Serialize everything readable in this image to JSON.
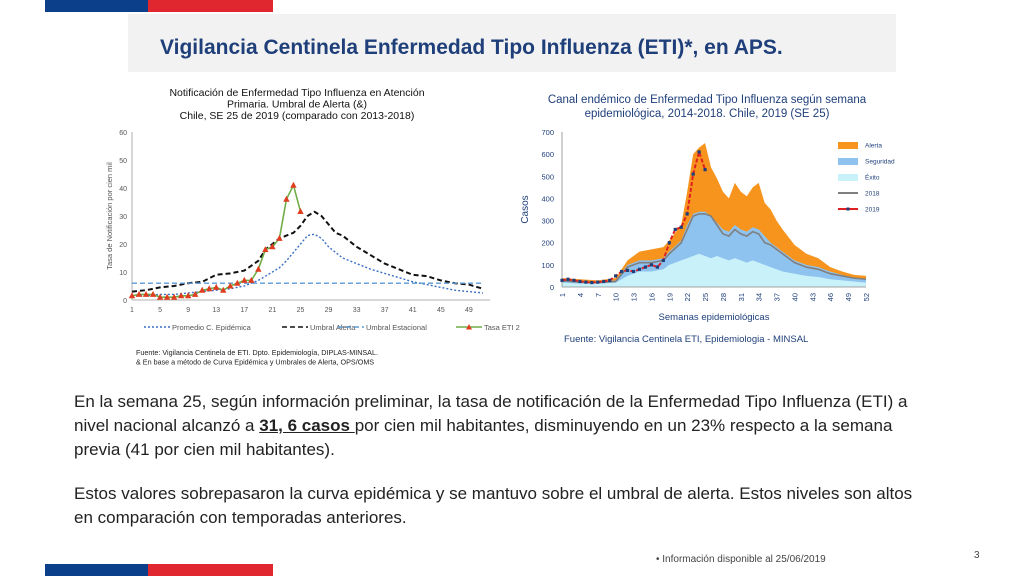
{
  "colors": {
    "flag_blue": "#0b3f8a",
    "flag_red": "#e0262f",
    "title_text": "#1f3f7a",
    "title_bg": "#f2f2f2"
  },
  "slide": {
    "title": "Vigilancia Centinela Enfermedad Tipo Influenza (ETI)*, en APS.",
    "paragraph1_a": "En la semana 25, según información preliminar,  la tasa de notificación de la Enfermedad Tipo Influenza (ETI) a nivel nacional alcanzó a ",
    "paragraph1_highlight": "31, 6 casos ",
    "paragraph1_b": "por cien mil habitantes, disminuyendo en un 23% respecto a la semana previa (41 por cien mil habitantes).",
    "paragraph2": "Estos valores sobrepasaron la curva epidémica y se mantuvo sobre el umbral de alerta. Estos niveles son altos en comparación con temporadas anteriores.",
    "footnote": "•   Información disponible al 25/06/2019",
    "page_number": "3"
  },
  "chart_data": [
    {
      "type": "line",
      "title_lines": [
        "Notificación de Enfermedad Tipo Influenza en Atención",
        "Primaria.  Umbral de Alerta (&)",
        "Chile, SE 25 de 2019 (comparado con 2013-2018)"
      ],
      "ylabel": "Tasa de Notificación por cien mil",
      "xlabel": "",
      "ylim": [
        0,
        60
      ],
      "yticks": [
        0,
        10,
        20,
        30,
        40,
        50,
        60
      ],
      "xticks": [
        1,
        5,
        9,
        13,
        17,
        21,
        25,
        29,
        33,
        37,
        41,
        45,
        49
      ],
      "xlim": [
        1,
        52
      ],
      "grid": false,
      "legend_position": "bottom",
      "source_lines": [
        "Fuente: Vigilancia Centinela de ETI. Dpto. Epidemiología, DIPLAS-MINSAL.",
        "& En base a método de Curva Epidémica y Umbrales de Alerta, OPS/OMS"
      ],
      "series": [
        {
          "name": "Promedio  C. Epidémica",
          "color": "#3a6fc4",
          "style": "dotted",
          "x": [
            1,
            3,
            5,
            7,
            9,
            11,
            13,
            15,
            17,
            19,
            20,
            21,
            22,
            23,
            24,
            25,
            26,
            27,
            28,
            29,
            30,
            31,
            33,
            35,
            37,
            39,
            41,
            43,
            45,
            47,
            49,
            51
          ],
          "y": [
            1.5,
            1.5,
            2,
            2,
            2.5,
            3,
            3.5,
            4,
            5,
            7,
            8.5,
            10,
            11.5,
            14,
            17,
            20,
            23,
            23.5,
            22,
            19,
            17,
            15,
            13,
            11,
            9.5,
            8,
            6.5,
            5.5,
            4.5,
            3.5,
            3,
            2.5
          ]
        },
        {
          "name": "Umbral Alerta",
          "color": "#111111",
          "style": "dashed",
          "x": [
            1,
            3,
            5,
            7,
            9,
            11,
            13,
            15,
            17,
            19,
            20,
            21,
            22,
            23,
            24,
            25,
            26,
            27,
            28,
            29,
            30,
            31,
            33,
            35,
            37,
            39,
            41,
            43,
            45,
            47,
            49,
            51
          ],
          "y": [
            3,
            3.5,
            4.5,
            5,
            6,
            6.5,
            9,
            9.5,
            10.5,
            14,
            18,
            20,
            22,
            23,
            24,
            26.5,
            30,
            31.5,
            30,
            27,
            24,
            23,
            19,
            16,
            13,
            11,
            9,
            8.5,
            7,
            6,
            5.5,
            4
          ]
        },
        {
          "name": "Umbral Estacional",
          "color": "#5b9bd5",
          "style": "dashed",
          "x": [
            1,
            51
          ],
          "y": [
            6,
            6
          ]
        },
        {
          "name": "Tasa ETI  2019",
          "color": "#70ad47",
          "style": "solid",
          "marker_color": "#e03c1f",
          "x": [
            1,
            2,
            3,
            4,
            5,
            6,
            7,
            8,
            9,
            10,
            11,
            12,
            13,
            14,
            15,
            16,
            17,
            18,
            19,
            20,
            21,
            22,
            23,
            24,
            25
          ],
          "y": [
            1.5,
            2,
            2,
            2,
            1,
            1,
            1,
            1.5,
            1.5,
            2,
            3.5,
            4,
            4.5,
            3.5,
            5,
            6,
            7,
            7,
            11,
            18,
            19,
            22,
            36,
            41,
            31.6
          ]
        }
      ]
    },
    {
      "type": "area",
      "title_lines": [
        "Canal  endémico de Enfermedad Tipo Influenza según semana",
        "epidemiológica, 2014-2018. Chile, 2019  (SE 25)"
      ],
      "ylabel": "Casos",
      "xlabel": "Semanas epidemiológicas",
      "ylim": [
        0,
        700
      ],
      "yticks": [
        0,
        100,
        200,
        300,
        400,
        500,
        600,
        700
      ],
      "xticks": [
        1,
        4,
        7,
        10,
        13,
        16,
        19,
        22,
        25,
        28,
        31,
        34,
        37,
        40,
        43,
        46,
        49,
        52
      ],
      "xlim": [
        1,
        52
      ],
      "grid": false,
      "legend_position": "right",
      "source": "Fuente: Vigilancia Centinela ETI, Epidemiologia  - MINSAL",
      "x": [
        1,
        4,
        7,
        10,
        12,
        14,
        16,
        18,
        19,
        21,
        22,
        23,
        24,
        25,
        26,
        27,
        28,
        29,
        30,
        31,
        32,
        33,
        34,
        35,
        36,
        37,
        38,
        40,
        42,
        44,
        46,
        48,
        50,
        52
      ],
      "series": [
        {
          "name": "Alerta",
          "color": "#f7941d",
          "kind": "area",
          "y": [
            40,
            35,
            30,
            40,
            120,
            160,
            170,
            180,
            210,
            280,
            430,
            600,
            630,
            650,
            540,
            490,
            430,
            400,
            470,
            430,
            410,
            450,
            470,
            380,
            350,
            300,
            260,
            190,
            150,
            130,
            90,
            70,
            55,
            50
          ]
        },
        {
          "name": "Seguridad",
          "color": "#8fc3ef",
          "kind": "area",
          "y": [
            30,
            25,
            22,
            30,
            100,
            120,
            120,
            130,
            160,
            210,
            280,
            330,
            340,
            340,
            320,
            290,
            260,
            250,
            280,
            260,
            250,
            270,
            260,
            230,
            200,
            180,
            160,
            120,
            100,
            90,
            70,
            55,
            40,
            38
          ]
        },
        {
          "name": "Éxito",
          "color": "#c9f1f9",
          "kind": "area",
          "y": [
            20,
            15,
            15,
            20,
            50,
            70,
            70,
            80,
            100,
            120,
            130,
            140,
            150,
            140,
            130,
            140,
            130,
            120,
            130,
            120,
            110,
            120,
            110,
            100,
            90,
            80,
            70,
            60,
            50,
            45,
            35,
            30,
            25,
            20
          ]
        },
        {
          "name": "2018",
          "color": "#7f7f7f",
          "kind": "line",
          "y": [
            28,
            22,
            20,
            25,
            90,
            110,
            110,
            120,
            150,
            200,
            260,
            320,
            330,
            330,
            320,
            280,
            240,
            230,
            260,
            240,
            230,
            250,
            240,
            200,
            190,
            170,
            150,
            110,
            90,
            80,
            60,
            50,
            40,
            35
          ]
        }
      ],
      "series_2019": {
        "name": "2019",
        "color": "#e02020",
        "marker_color": "#1f3f7a",
        "x": [
          1,
          2,
          3,
          4,
          5,
          6,
          7,
          8,
          9,
          10,
          11,
          12,
          13,
          14,
          15,
          16,
          17,
          18,
          19,
          20,
          21,
          22,
          23,
          24,
          25
        ],
        "y": [
          30,
          35,
          30,
          25,
          22,
          20,
          22,
          25,
          30,
          50,
          70,
          75,
          70,
          80,
          90,
          100,
          90,
          120,
          200,
          260,
          270,
          330,
          510,
          610,
          530
        ]
      }
    }
  ]
}
